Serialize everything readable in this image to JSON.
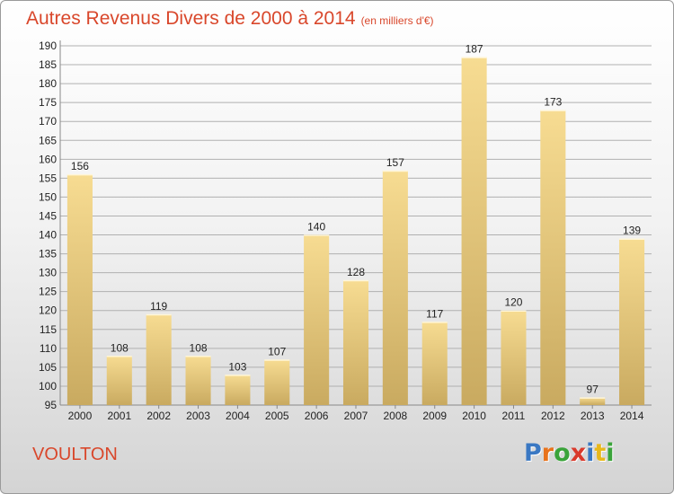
{
  "header": {
    "title": "Autres Revenus Divers de 2000 à 2014",
    "subtitle": "(en milliers d'€)"
  },
  "footer": {
    "town": "VOULTON",
    "brand": "Proxiti",
    "brand_letters": [
      {
        "ch": "P",
        "color": "#3a78c3"
      },
      {
        "ch": "r",
        "color": "#e8731c"
      },
      {
        "ch": "o",
        "color": "#3aa33a"
      },
      {
        "ch": "x",
        "color": "#d93a2c"
      },
      {
        "ch": "i",
        "color": "#3a78c3"
      },
      {
        "ch": "t",
        "color": "#e8b81c"
      },
      {
        "ch": "i",
        "color": "#3aa33a"
      }
    ]
  },
  "colors": {
    "title": "#d9472b",
    "bar_light": "#f7dc92",
    "bar_dark": "#c9aa60",
    "grid": "#b0b0b0",
    "axis_text": "#222222"
  },
  "chart_data": {
    "type": "bar",
    "title": "Autres Revenus Divers de 2000 à 2014",
    "subtitle": "(en milliers d'€)",
    "categories": [
      "2000",
      "2001",
      "2002",
      "2003",
      "2004",
      "2005",
      "2006",
      "2007",
      "2008",
      "2009",
      "2010",
      "2011",
      "2012",
      "2013",
      "2014"
    ],
    "values": [
      156,
      108,
      119,
      108,
      103,
      107,
      140,
      128,
      157,
      117,
      187,
      120,
      173,
      97,
      139
    ],
    "ylim": [
      95,
      190
    ],
    "yticks": [
      95,
      100,
      105,
      110,
      115,
      120,
      125,
      130,
      135,
      140,
      145,
      150,
      155,
      160,
      165,
      170,
      175,
      180,
      185,
      190
    ],
    "grid": true,
    "legend": "none"
  }
}
